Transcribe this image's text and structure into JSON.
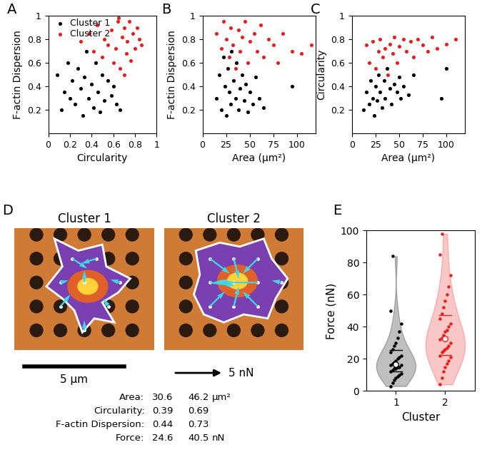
{
  "chart_data": [
    {
      "type": "scatter",
      "panel_label": "A",
      "x_label": "Circularity",
      "y_label": "F-actin Dispersion",
      "xlim": [
        0,
        1
      ],
      "ylim": [
        0,
        1
      ],
      "xticks": [
        0,
        0.2,
        0.4,
        0.6,
        0.8,
        1
      ],
      "yticks": [
        0.2,
        0.4,
        0.6,
        0.8,
        1
      ],
      "legend": "upper left",
      "series": [
        {
          "name": "Cluster 1",
          "color": "#000000",
          "x": [
            0.08,
            0.12,
            0.15,
            0.18,
            0.2,
            0.22,
            0.25,
            0.27,
            0.3,
            0.32,
            0.33,
            0.35,
            0.37,
            0.4,
            0.42,
            0.44,
            0.46,
            0.48,
            0.5,
            0.52,
            0.55,
            0.58,
            0.6,
            0.63,
            0.66
          ],
          "values": [
            0.5,
            0.2,
            0.35,
            0.6,
            0.3,
            0.45,
            0.25,
            0.55,
            0.38,
            0.15,
            0.48,
            0.7,
            0.3,
            0.42,
            0.22,
            0.6,
            0.35,
            0.18,
            0.5,
            0.28,
            0.45,
            0.32,
            0.4,
            0.25,
            0.2
          ]
        },
        {
          "name": "Cluster 2",
          "color": "#e8201c",
          "x": [
            0.3,
            0.38,
            0.42,
            0.45,
            0.5,
            0.52,
            0.55,
            0.58,
            0.6,
            0.62,
            0.64,
            0.66,
            0.68,
            0.7,
            0.72,
            0.73,
            0.75,
            0.76,
            0.78,
            0.8,
            0.82,
            0.84,
            0.86,
            0.7,
            0.65
          ],
          "values": [
            0.78,
            0.85,
            0.7,
            0.92,
            0.65,
            0.8,
            0.75,
            0.88,
            0.6,
            0.72,
            0.95,
            0.55,
            0.82,
            0.9,
            0.68,
            0.78,
            0.95,
            0.62,
            0.85,
            0.72,
            0.9,
            0.8,
            0.75,
            0.5,
            0.98
          ]
        }
      ]
    },
    {
      "type": "scatter",
      "panel_label": "B",
      "x_label": "Area (μm²)",
      "y_label": "F-actin Dispersion",
      "xlim": [
        0,
        120
      ],
      "ylim": [
        0,
        1
      ],
      "xticks": [
        0,
        25,
        50,
        75,
        100
      ],
      "yticks": [
        0.2,
        0.4,
        0.6,
        0.8,
        1
      ],
      "series": [
        {
          "color": "#000000",
          "x": [
            15,
            18,
            20,
            22,
            24,
            25,
            27,
            28,
            30,
            31,
            33,
            35,
            36,
            38,
            40,
            42,
            44,
            46,
            48,
            50,
            53,
            56,
            60,
            65,
            95
          ],
          "values": [
            0.3,
            0.5,
            0.2,
            0.65,
            0.4,
            0.15,
            0.55,
            0.35,
            0.25,
            0.7,
            0.45,
            0.3,
            0.6,
            0.2,
            0.38,
            0.5,
            0.28,
            0.42,
            0.18,
            0.35,
            0.25,
            0.48,
            0.3,
            0.22,
            0.4
          ]
        },
        {
          "color": "#e8201c",
          "x": [
            15,
            20,
            22,
            25,
            28,
            30,
            32,
            35,
            38,
            40,
            42,
            45,
            48,
            50,
            55,
            58,
            62,
            65,
            70,
            75,
            80,
            85,
            95,
            105,
            115
          ],
          "values": [
            0.85,
            0.72,
            0.95,
            0.8,
            0.65,
            0.9,
            0.75,
            0.55,
            0.88,
            0.7,
            0.82,
            0.95,
            0.6,
            0.78,
            0.85,
            0.7,
            0.92,
            0.65,
            0.8,
            0.75,
            0.6,
            0.85,
            0.7,
            0.68,
            0.75
          ]
        }
      ]
    },
    {
      "type": "scatter",
      "panel_label": "C",
      "x_label": "Area (μm²)",
      "y_label": "Circularity",
      "xlim": [
        0,
        120
      ],
      "ylim": [
        0,
        1
      ],
      "xticks": [
        0,
        25,
        50,
        75,
        100
      ],
      "yticks": [
        0.2,
        0.4,
        0.6,
        0.8,
        1
      ],
      "series": [
        {
          "color": "#000000",
          "x": [
            12,
            15,
            18,
            20,
            22,
            24,
            25,
            27,
            28,
            30,
            32,
            34,
            35,
            37,
            40,
            42,
            45,
            48,
            50,
            52,
            55,
            60,
            65,
            95,
            100
          ],
          "values": [
            0.2,
            0.35,
            0.25,
            0.45,
            0.3,
            0.15,
            0.4,
            0.28,
            0.5,
            0.35,
            0.22,
            0.45,
            0.3,
            0.55,
            0.38,
            0.25,
            0.42,
            0.35,
            0.48,
            0.3,
            0.4,
            0.33,
            0.5,
            0.3,
            0.55
          ]
        },
        {
          "color": "#e8201c",
          "x": [
            15,
            18,
            22,
            25,
            28,
            30,
            33,
            35,
            38,
            40,
            43,
            45,
            48,
            50,
            55,
            58,
            62,
            65,
            70,
            75,
            80,
            85,
            90,
            100,
            110
          ],
          "values": [
            0.75,
            0.6,
            0.78,
            0.55,
            0.7,
            0.8,
            0.65,
            0.72,
            0.5,
            0.76,
            0.68,
            0.82,
            0.6,
            0.74,
            0.8,
            0.7,
            0.78,
            0.65,
            0.8,
            0.75,
            0.7,
            0.82,
            0.72,
            0.76,
            0.8
          ]
        }
      ]
    },
    {
      "type": "violin",
      "panel_label": "E",
      "x_label": "Cluster",
      "y_label": "Force (nN)",
      "categories": [
        "1",
        "2"
      ],
      "ylim": [
        0,
        100
      ],
      "yticks": [
        0,
        20,
        40,
        60,
        80,
        100
      ],
      "colors": [
        "#000000",
        "#e8201c"
      ],
      "values": [
        [
          3,
          5,
          7,
          8,
          9,
          10,
          11,
          12,
          13,
          14,
          14,
          15,
          15,
          16,
          16,
          17,
          18,
          19,
          20,
          21,
          22,
          24,
          26,
          28,
          30,
          33,
          37,
          42,
          50,
          84
        ],
        [
          4,
          8,
          12,
          15,
          17,
          19,
          21,
          22,
          24,
          25,
          26,
          27,
          28,
          30,
          32,
          33,
          35,
          37,
          38,
          40,
          42,
          45,
          48,
          52,
          56,
          60,
          65,
          72,
          85,
          98
        ]
      ]
    }
  ],
  "image_panel": {
    "panel_label": "D",
    "cells": [
      {
        "title": "Cluster 1",
        "force_vectors": [
          [
            2.9,
            4.6,
            1.5,
            -1.0
          ],
          [
            4.1,
            4.6,
            -1.5,
            -0.5
          ],
          [
            3.5,
            3.4,
            0.0,
            1.2
          ],
          [
            2.3,
            2.2,
            1.0,
            1.2
          ],
          [
            4.7,
            2.2,
            -0.5,
            0.8
          ],
          [
            3.5,
            1.0,
            0.0,
            1.0
          ],
          [
            5.3,
            3.4,
            -1.0,
            0.3
          ],
          [
            2.3,
            3.4,
            0.8,
            0.2
          ]
        ]
      },
      {
        "title": "Cluster 2",
        "force_vectors": [
          [
            2.3,
            4.6,
            2.0,
            -1.5
          ],
          [
            3.5,
            4.6,
            0.5,
            -2.0
          ],
          [
            4.7,
            4.6,
            -1.5,
            -1.5
          ],
          [
            2.3,
            3.4,
            2.5,
            -0.3
          ],
          [
            4.7,
            3.4,
            -4.5,
            0.0
          ],
          [
            3.5,
            3.4,
            -1.5,
            0.2
          ],
          [
            2.3,
            2.2,
            1.5,
            1.5
          ],
          [
            3.5,
            2.2,
            0.5,
            2.0
          ],
          [
            4.7,
            2.2,
            -1.5,
            1.5
          ],
          [
            5.9,
            3.4,
            -1.0,
            0.2
          ]
        ]
      }
    ],
    "scale_bar": {
      "value": 5,
      "label": "5 μm"
    },
    "force_scale": {
      "value": 5,
      "label": "5 nN"
    },
    "table": [
      {
        "label": "Area:",
        "values": [
          30.6,
          46.2
        ],
        "unit": "μm²"
      },
      {
        "label": "Circularity:",
        "values": [
          0.39,
          0.69
        ]
      },
      {
        "label": "F-actin Dispersion:",
        "values": [
          0.44,
          0.73
        ]
      },
      {
        "label": "Force:",
        "values": [
          24.6,
          40.5
        ],
        "unit": "nN"
      }
    ]
  }
}
